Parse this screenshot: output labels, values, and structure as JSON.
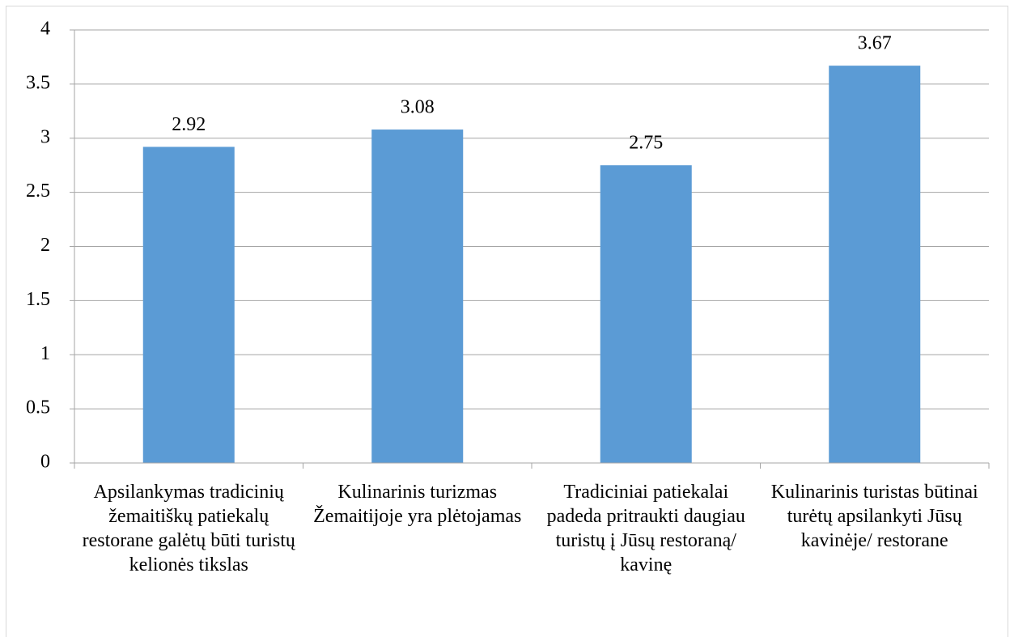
{
  "chart_data": {
    "type": "bar",
    "categories": [
      "Apsilankymas tradicinių žemaitiškų patiekalų restorane galėtų būti turistų kelionės tikslas",
      "Kulinarinis turizmas Žemaitijoje yra plėtojamas",
      "Tradiciniai patiekalai padeda pritraukti daugiau turistų į Jūsų restoraną/ kavinę",
      "Kulinarinis turistas būtinai turėtų apsilankyti Jūsų kavinėje/ restorane"
    ],
    "values": [
      2.92,
      3.08,
      2.75,
      3.67
    ],
    "color": "#5b9bd5",
    "ylim": [
      0,
      4
    ],
    "yticks": [
      0,
      0.5,
      1,
      1.5,
      2,
      2.5,
      3,
      3.5,
      4
    ],
    "grid": true
  }
}
